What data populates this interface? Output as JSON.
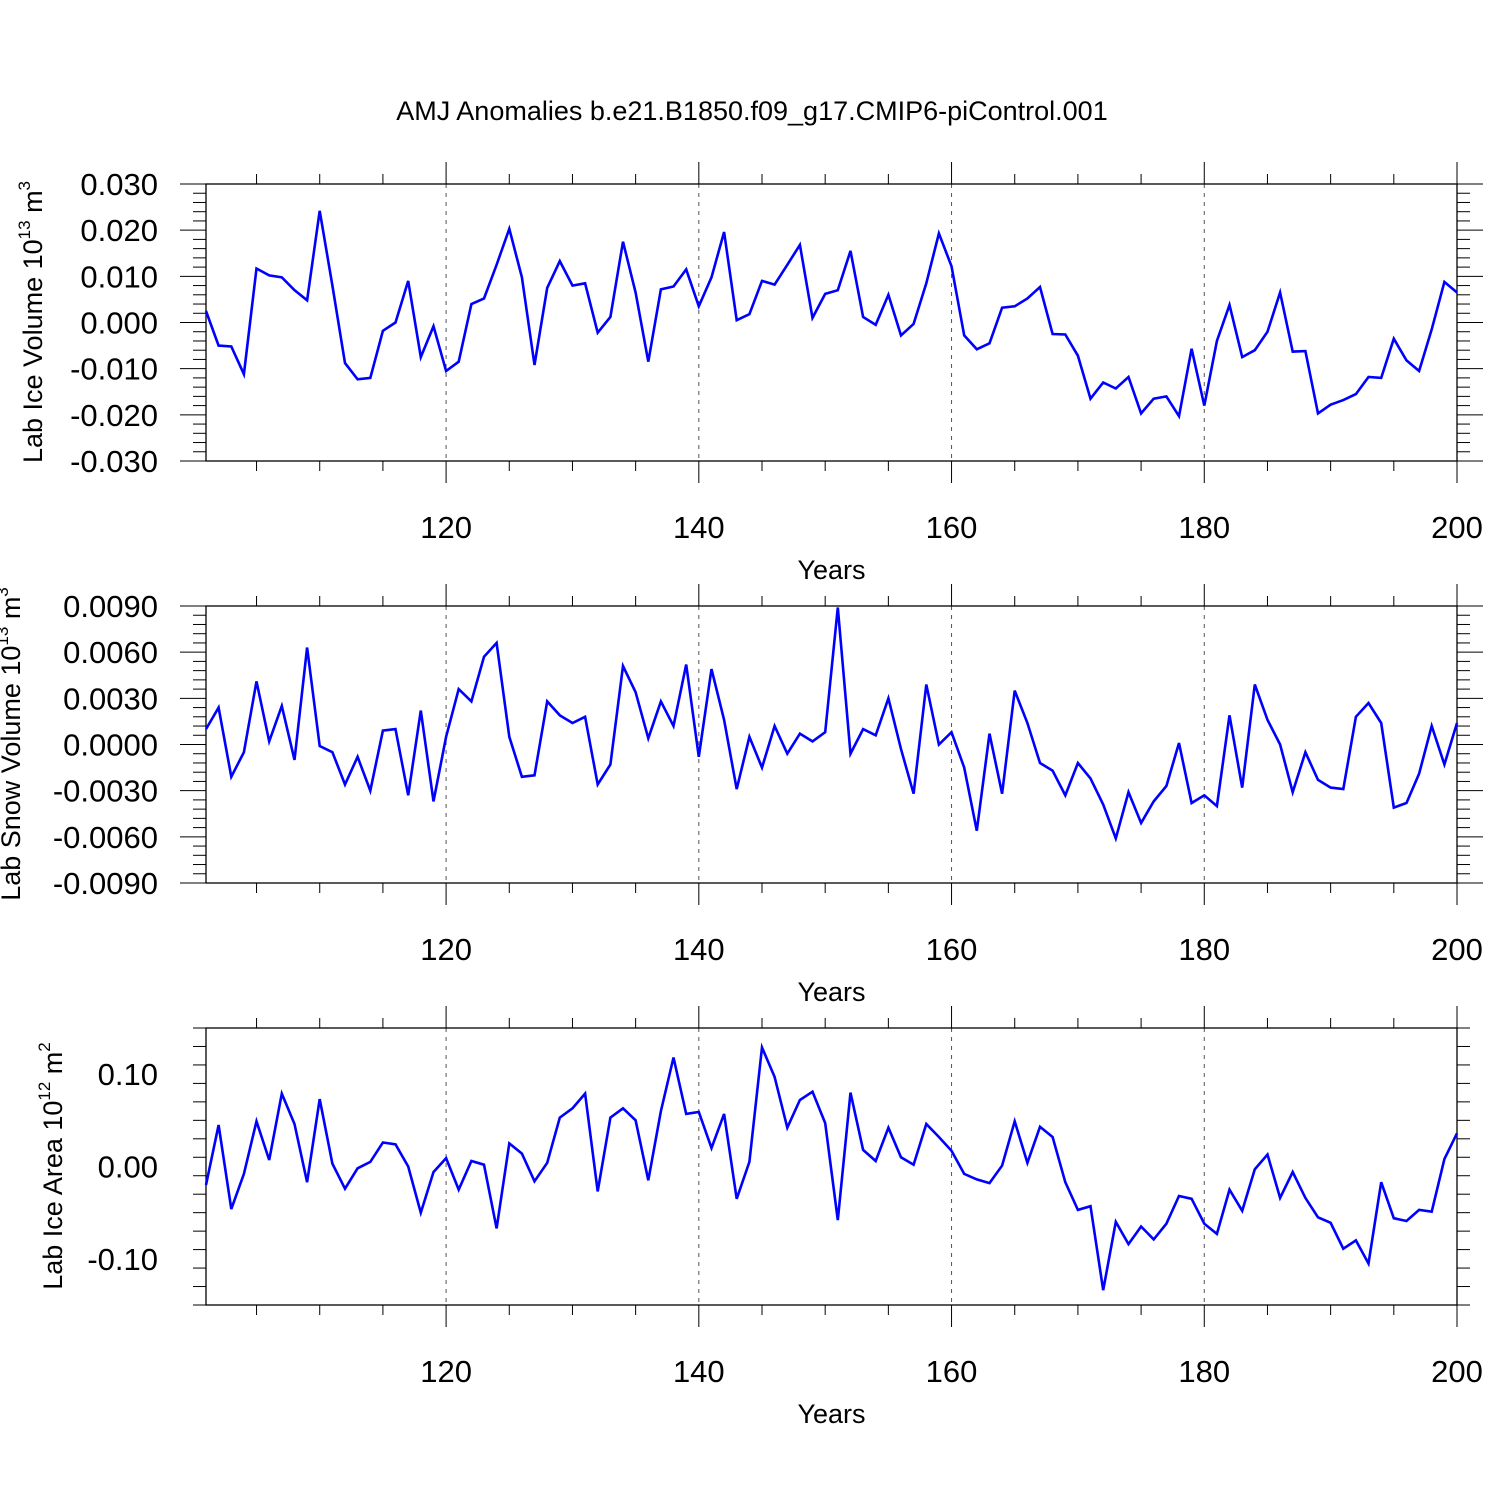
{
  "title": "AMJ Anomalies b.e21.B1850.f09_g17.CMIP6-piControl.001",
  "line_color": "#0000ff",
  "chart_data": [
    {
      "type": "line",
      "xlabel": "Years",
      "ylabel_text": "Lab Ice Volume 10",
      "ylabel_exp": "13",
      "ylabel_unit": " m",
      "ylabel_unit_exp": "3",
      "xlim": [
        101,
        200
      ],
      "ylim": [
        -0.03,
        0.03
      ],
      "yticks": [
        -0.03,
        -0.02,
        -0.01,
        0.0,
        0.01,
        0.02,
        0.03
      ],
      "ytick_labels": [
        "-0.030",
        "-0.020",
        "-0.010",
        "0.000",
        "0.010",
        "0.020",
        "0.030"
      ],
      "xticks": [
        120,
        140,
        160,
        180,
        200
      ],
      "xtick_labels": [
        "120",
        "140",
        "160",
        "180",
        "200"
      ],
      "vlines": [
        120,
        140,
        160,
        180
      ],
      "x_start": 101,
      "values": [
        0.0025,
        -0.005,
        -0.0052,
        -0.0112,
        0.0117,
        0.0102,
        0.0098,
        0.007,
        0.0048,
        0.0242,
        0.008,
        -0.0088,
        -0.0123,
        -0.012,
        -0.0018,
        0.0,
        0.009,
        -0.0075,
        -0.0008,
        -0.0105,
        -0.0085,
        0.004,
        0.0052,
        0.0125,
        0.0203,
        0.0098,
        -0.0092,
        0.0075,
        0.0133,
        0.008,
        0.0085,
        -0.0022,
        0.0012,
        0.0175,
        0.0065,
        -0.0085,
        0.0072,
        0.0078,
        0.0115,
        0.0035,
        0.0098,
        0.0196,
        0.0005,
        0.0018,
        0.009,
        0.0082,
        0.0125,
        0.0168,
        0.001,
        0.0062,
        0.007,
        0.0155,
        0.0012,
        -0.0005,
        0.006,
        -0.0028,
        -0.0003,
        0.0085,
        0.0193,
        0.0122,
        -0.0028,
        -0.0058,
        -0.0045,
        0.0032,
        0.0035,
        0.0052,
        0.0077,
        -0.0025,
        -0.0026,
        -0.0072,
        -0.0165,
        -0.013,
        -0.0143,
        -0.0118,
        -0.0197,
        -0.0165,
        -0.016,
        -0.0203,
        -0.0057,
        -0.018,
        -0.004,
        0.0038,
        -0.0075,
        -0.006,
        -0.002,
        0.0065,
        -0.0063,
        -0.0062,
        -0.0197,
        -0.0178,
        -0.0168,
        -0.0155,
        -0.0118,
        -0.012,
        -0.0035,
        -0.0082,
        -0.0105,
        -0.0015,
        0.0088,
        0.0065
      ]
    },
    {
      "type": "line",
      "xlabel": "Years",
      "ylabel_text": "Lab Snow Volume 10",
      "ylabel_exp": "13",
      "ylabel_unit": " m",
      "ylabel_unit_exp": "3",
      "xlim": [
        101,
        200
      ],
      "ylim": [
        -0.009,
        0.009
      ],
      "yticks": [
        -0.009,
        -0.006,
        -0.003,
        0.0,
        0.003,
        0.006,
        0.009
      ],
      "ytick_labels": [
        "-0.0090",
        "-0.0060",
        "-0.0030",
        "0.0000",
        "0.0030",
        "0.0060",
        "0.0090"
      ],
      "xticks": [
        120,
        140,
        160,
        180,
        200
      ],
      "xtick_labels": [
        "120",
        "140",
        "160",
        "180",
        "200"
      ],
      "vlines": [
        120,
        140,
        160,
        180
      ],
      "x_start": 101,
      "values": [
        0.001,
        0.0024,
        -0.0021,
        -0.0005,
        0.0041,
        0.0002,
        0.0025,
        -0.001,
        0.0063,
        -0.0001,
        -0.0005,
        -0.0026,
        -0.0008,
        -0.003,
        0.0009,
        0.001,
        -0.0033,
        0.0022,
        -0.0037,
        0.0005,
        0.0036,
        0.0028,
        0.0057,
        0.0066,
        0.0005,
        -0.0021,
        -0.002,
        0.0028,
        0.0019,
        0.0014,
        0.0018,
        -0.0026,
        -0.0013,
        0.0051,
        0.0034,
        0.0004,
        0.0028,
        0.0012,
        0.0052,
        -0.0008,
        0.0049,
        0.0016,
        -0.0029,
        0.0005,
        -0.0015,
        0.0012,
        -0.0006,
        0.0007,
        0.0002,
        0.0008,
        0.0089,
        -0.0006,
        0.001,
        0.0006,
        0.003,
        -0.0003,
        -0.0032,
        0.0039,
        0.0,
        0.0008,
        -0.0015,
        -0.0056,
        0.0007,
        -0.0032,
        0.0035,
        0.0014,
        -0.0012,
        -0.0017,
        -0.0033,
        -0.0012,
        -0.0022,
        -0.0039,
        -0.0061,
        -0.0031,
        -0.0051,
        -0.0037,
        -0.0027,
        0.0001,
        -0.0038,
        -0.0033,
        -0.004,
        0.0019,
        -0.0028,
        0.0039,
        0.0016,
        0.0,
        -0.0031,
        -0.0005,
        -0.0023,
        -0.0028,
        -0.0029,
        0.0018,
        0.0027,
        0.0014,
        -0.0041,
        -0.0038,
        -0.0019,
        0.0012,
        -0.0013,
        0.0014
      ]
    },
    {
      "type": "line",
      "xlabel": "Years",
      "ylabel_text": "Lab Ice Area 10",
      "ylabel_exp": "12",
      "ylabel_unit": " m",
      "ylabel_unit_exp": "2",
      "xlim": [
        101,
        200
      ],
      "ylim": [
        -0.15,
        0.15
      ],
      "yticks": [
        -0.1,
        0.0,
        0.1
      ],
      "ytick_labels": [
        "-0.10",
        "0.00",
        "0.10"
      ],
      "xticks": [
        120,
        140,
        160,
        180,
        200
      ],
      "xtick_labels": [
        "120",
        "140",
        "160",
        "180",
        "200"
      ],
      "vlines": [
        120,
        140,
        160,
        180
      ],
      "x_start": 101,
      "values": [
        -0.02,
        0.045,
        -0.046,
        -0.008,
        0.049,
        0.007,
        0.079,
        0.046,
        -0.017,
        0.073,
        0.003,
        -0.024,
        -0.002,
        0.005,
        0.026,
        0.024,
        0.0,
        -0.05,
        -0.006,
        0.009,
        -0.025,
        0.006,
        0.002,
        -0.067,
        0.025,
        0.014,
        -0.016,
        0.004,
        0.053,
        0.063,
        0.079,
        -0.027,
        0.053,
        0.063,
        0.05,
        -0.015,
        0.06,
        0.118,
        0.057,
        0.059,
        0.02,
        0.057,
        -0.035,
        0.005,
        0.129,
        0.097,
        0.042,
        0.072,
        0.081,
        0.047,
        -0.058,
        0.08,
        0.018,
        0.006,
        0.042,
        0.01,
        0.002,
        0.046,
        0.032,
        0.017,
        -0.008,
        -0.014,
        -0.018,
        0.001,
        0.049,
        0.004,
        0.043,
        0.032,
        -0.017,
        -0.047,
        -0.043,
        -0.134,
        -0.06,
        -0.084,
        -0.065,
        -0.079,
        -0.062,
        -0.032,
        -0.035,
        -0.062,
        -0.073,
        -0.025,
        -0.048,
        -0.003,
        0.013,
        -0.034,
        -0.006,
        -0.034,
        -0.055,
        -0.061,
        -0.089,
        -0.08,
        -0.105,
        -0.017,
        -0.056,
        -0.059,
        -0.047,
        -0.049,
        0.008,
        0.036
      ]
    }
  ]
}
